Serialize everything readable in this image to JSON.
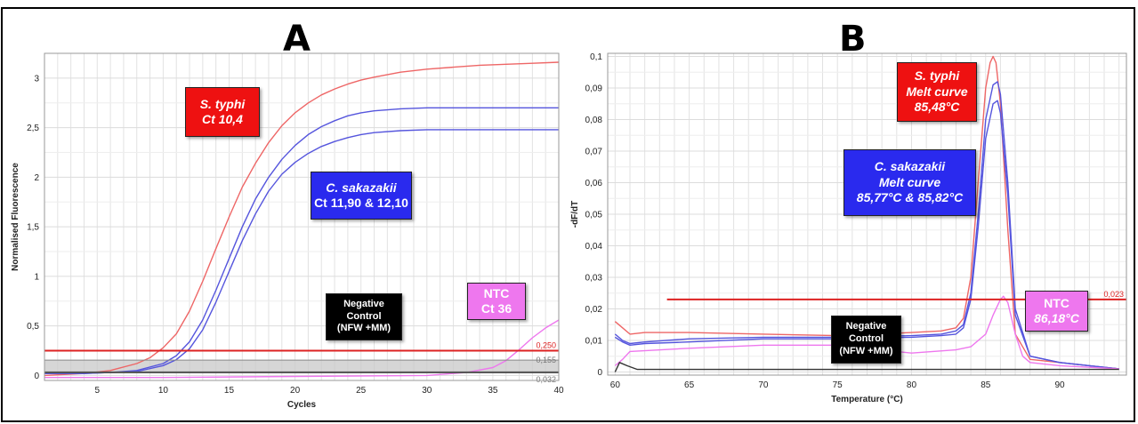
{
  "panels": {
    "a": {
      "letter": "A"
    },
    "b": {
      "letter": "B"
    }
  },
  "labels": {
    "a_typhi": [
      "S. typhi",
      "Ct 10,4"
    ],
    "a_sakazakii": [
      "C. sakazakii",
      "Ct 11,90 & 12,10"
    ],
    "a_negative": [
      "Negative",
      "Control",
      "(NFW +MM)"
    ],
    "a_ntc": [
      "NTC",
      "Ct 36"
    ],
    "b_typhi": [
      "S. typhi",
      "Melt curve",
      "85,48°C"
    ],
    "b_sakazakii": [
      "C. sakazakii",
      "Melt curve",
      "85,77°C & 85,82°C"
    ],
    "b_negative": [
      "Negative",
      "Control",
      "(NFW +MM)"
    ],
    "b_ntc": [
      "NTC",
      "86,18°C"
    ]
  },
  "colors": {
    "typhi": "#ee6666",
    "sakazakii": "#5555dd",
    "ntc": "#ee77ee",
    "negative": "#333333",
    "threshold": "#dd2222",
    "band": "#c8c8c8"
  },
  "chart_data": [
    {
      "type": "line",
      "xlabel": "Cycles",
      "ylabel": "Normalised Fluorescence",
      "xlim": [
        1,
        40
      ],
      "ylim": [
        -0.05,
        3.25
      ],
      "x_ticks": [
        5,
        10,
        15,
        20,
        25,
        30,
        35,
        40
      ],
      "y_ticks": [
        0,
        0.5,
        1,
        1.5,
        2,
        2.5,
        3
      ],
      "y_tick_labels": [
        "0",
        "0,5",
        "1",
        "1,5",
        "2",
        "2,5",
        "3"
      ],
      "grid": true,
      "thresholds": [
        {
          "value": 0.25,
          "label": "0,250",
          "color": "#dd2222",
          "width": 2
        },
        {
          "value": 0.155,
          "label": "0,155",
          "color": "#888888",
          "width": 1
        },
        {
          "value": 0.032,
          "label": "0,032",
          "color": "#555555",
          "width": 2
        }
      ],
      "shaded_band": [
        0.032,
        0.155
      ],
      "series": [
        {
          "role": "typhi",
          "x": [
            1,
            4,
            6,
            8,
            9,
            10,
            11,
            12,
            13,
            14,
            15,
            16,
            17,
            18,
            19,
            20,
            21,
            22,
            23,
            24,
            25,
            26,
            28,
            30,
            32,
            34,
            36,
            38,
            40
          ],
          "y": [
            0.0,
            0.02,
            0.05,
            0.12,
            0.18,
            0.28,
            0.42,
            0.65,
            0.95,
            1.28,
            1.6,
            1.9,
            2.14,
            2.35,
            2.52,
            2.65,
            2.75,
            2.83,
            2.89,
            2.94,
            2.98,
            3.01,
            3.06,
            3.09,
            3.11,
            3.13,
            3.14,
            3.15,
            3.16
          ]
        },
        {
          "role": "sakazakii",
          "x": [
            1,
            4,
            6,
            8,
            10,
            11,
            12,
            13,
            14,
            15,
            16,
            17,
            18,
            19,
            20,
            21,
            22,
            23,
            24,
            25,
            26,
            28,
            30,
            32,
            34,
            36,
            38,
            40
          ],
          "y": [
            0.02,
            0.02,
            0.03,
            0.05,
            0.12,
            0.2,
            0.34,
            0.56,
            0.86,
            1.18,
            1.5,
            1.78,
            2.0,
            2.18,
            2.32,
            2.43,
            2.51,
            2.57,
            2.62,
            2.65,
            2.67,
            2.69,
            2.7,
            2.7,
            2.7,
            2.7,
            2.7,
            2.7
          ]
        },
        {
          "role": "sakazakii",
          "x": [
            1,
            4,
            6,
            8,
            10,
            11,
            12,
            13,
            14,
            15,
            16,
            17,
            18,
            19,
            20,
            21,
            22,
            23,
            24,
            25,
            26,
            28,
            30,
            32,
            34,
            36,
            38,
            40
          ],
          "y": [
            0.02,
            0.02,
            0.03,
            0.04,
            0.1,
            0.16,
            0.27,
            0.46,
            0.74,
            1.05,
            1.36,
            1.63,
            1.86,
            2.03,
            2.15,
            2.24,
            2.31,
            2.36,
            2.4,
            2.43,
            2.45,
            2.47,
            2.48,
            2.48,
            2.48,
            2.48,
            2.48,
            2.48
          ]
        },
        {
          "role": "ntc",
          "x": [
            1,
            10,
            20,
            30,
            33,
            35,
            36,
            37,
            38,
            39,
            40
          ],
          "y": [
            -0.02,
            -0.02,
            -0.01,
            0.0,
            0.03,
            0.08,
            0.15,
            0.26,
            0.38,
            0.48,
            0.56
          ]
        },
        {
          "role": "negative",
          "x": [
            1,
            10,
            20,
            30,
            40
          ],
          "y": [
            0.03,
            0.03,
            0.03,
            0.03,
            0.03
          ]
        }
      ]
    },
    {
      "type": "line",
      "xlabel": "Temperature (°C)",
      "ylabel": "-dF/dT",
      "xlim": [
        59.5,
        94.5
      ],
      "ylim": [
        -0.001,
        0.101
      ],
      "x_ticks": [
        60,
        65,
        70,
        75,
        80,
        85,
        90
      ],
      "y_ticks": [
        0,
        0.01,
        0.02,
        0.03,
        0.04,
        0.05,
        0.06,
        0.07,
        0.08,
        0.09,
        0.1
      ],
      "y_tick_labels": [
        "0",
        "0,01",
        "0,02",
        "0,03",
        "0,04",
        "0,05",
        "0,06",
        "0,07",
        "0,08",
        "0,09",
        "0,1"
      ],
      "grid": true,
      "thresholds": [
        {
          "value": 0.023,
          "label": "0,023",
          "color": "#dd2222",
          "width": 2,
          "x_start": 63.5
        }
      ],
      "series": [
        {
          "role": "typhi",
          "x": [
            60,
            60.5,
            61,
            62,
            65,
            70,
            75,
            80,
            82,
            83,
            83.5,
            84,
            84.5,
            85,
            85.3,
            85.5,
            85.7,
            86,
            86.5,
            87,
            88,
            90,
            92,
            94
          ],
          "y": [
            0.016,
            0.014,
            0.012,
            0.0125,
            0.0125,
            0.012,
            0.0115,
            0.0125,
            0.013,
            0.014,
            0.017,
            0.03,
            0.06,
            0.09,
            0.098,
            0.1,
            0.098,
            0.085,
            0.045,
            0.012,
            0.004,
            0.003,
            0.002,
            0.001
          ]
        },
        {
          "role": "sakazakii",
          "x": [
            60,
            60.5,
            61,
            62,
            65,
            70,
            75,
            80,
            82,
            83,
            83.5,
            84,
            84.5,
            85,
            85.5,
            85.8,
            86,
            86.5,
            87,
            88,
            90,
            92,
            94
          ],
          "y": [
            0.012,
            0.01,
            0.009,
            0.0095,
            0.0105,
            0.011,
            0.011,
            0.0115,
            0.012,
            0.013,
            0.015,
            0.025,
            0.05,
            0.08,
            0.091,
            0.092,
            0.088,
            0.06,
            0.02,
            0.005,
            0.003,
            0.002,
            0.001
          ]
        },
        {
          "role": "sakazakii",
          "x": [
            60,
            60.5,
            61,
            62,
            65,
            70,
            75,
            80,
            82,
            83,
            83.5,
            84,
            84.5,
            85,
            85.5,
            85.8,
            86,
            86.5,
            87,
            88,
            90,
            92,
            94
          ],
          "y": [
            0.011,
            0.0095,
            0.0085,
            0.009,
            0.0095,
            0.0105,
            0.0105,
            0.011,
            0.0115,
            0.012,
            0.014,
            0.023,
            0.046,
            0.074,
            0.085,
            0.086,
            0.082,
            0.056,
            0.018,
            0.005,
            0.003,
            0.002,
            0.001
          ]
        },
        {
          "role": "ntc",
          "x": [
            60,
            60.5,
            61,
            65,
            70,
            75,
            80,
            83,
            84,
            85,
            85.5,
            86,
            86.2,
            86.5,
            87,
            87.5,
            88,
            90,
            94
          ],
          "y": [
            0.002,
            0.004,
            0.0065,
            0.0075,
            0.0085,
            0.0085,
            0.006,
            0.007,
            0.008,
            0.012,
            0.018,
            0.023,
            0.024,
            0.022,
            0.012,
            0.005,
            0.003,
            0.002,
            0.001
          ]
        },
        {
          "role": "negative",
          "x": [
            60,
            60.3,
            60.8,
            61.5,
            65,
            70,
            75,
            80,
            85,
            90,
            94
          ],
          "y": [
            0.0,
            0.003,
            0.002,
            0.0008,
            0.0008,
            0.0008,
            0.0008,
            0.0008,
            0.0008,
            0.0008,
            0.0008
          ]
        }
      ]
    }
  ]
}
